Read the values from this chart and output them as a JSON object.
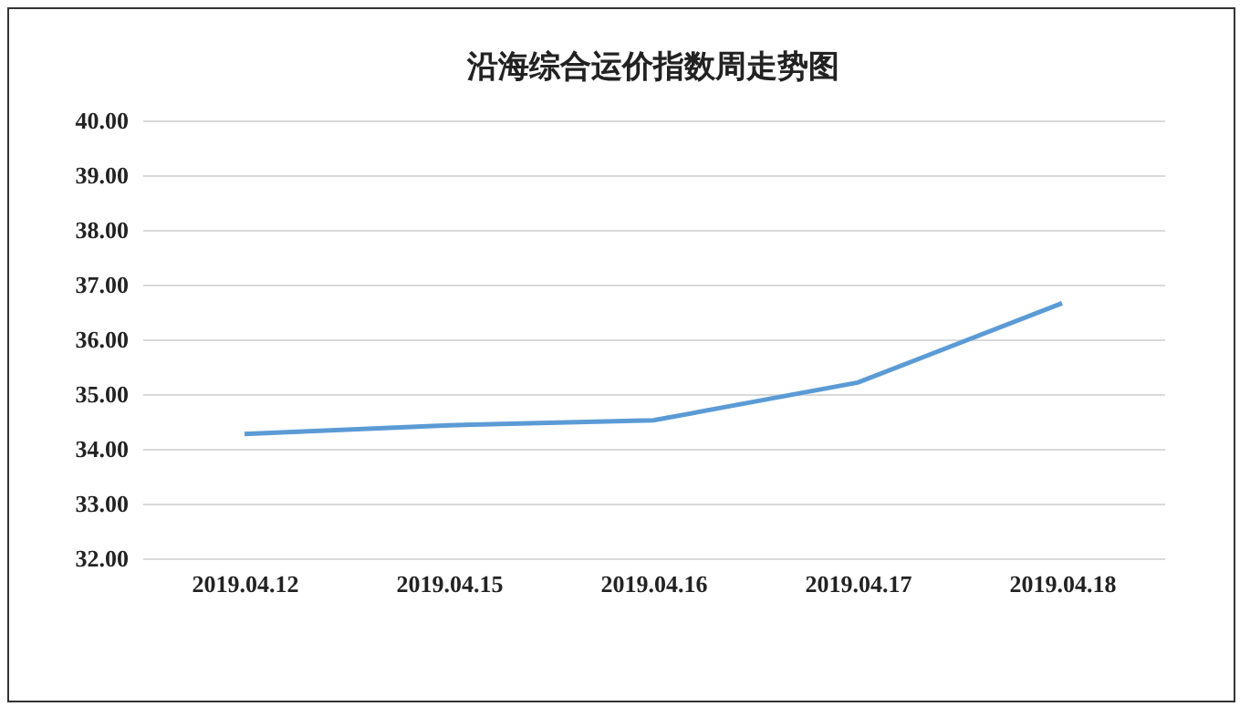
{
  "chart_data": {
    "type": "line",
    "title": "沿海综合运价指数周走势图",
    "categories": [
      "2019.04.12",
      "2019.04.15",
      "2019.04.16",
      "2019.04.17",
      "2019.04.18"
    ],
    "series": [
      {
        "color": "#5b9bd5",
        "values": [
          34.27,
          34.43,
          34.52,
          35.21,
          36.66
        ]
      }
    ],
    "ylim": [
      32,
      40
    ],
    "yticks": [
      {
        "value": 32,
        "label": "32.00"
      },
      {
        "value": 33,
        "label": "33.00"
      },
      {
        "value": 34,
        "label": "34.00"
      },
      {
        "value": 35,
        "label": "35.00"
      },
      {
        "value": 36,
        "label": "36.00"
      },
      {
        "value": 37,
        "label": "37.00"
      },
      {
        "value": 38,
        "label": "38.00"
      },
      {
        "value": 39,
        "label": "39.00"
      },
      {
        "value": 40,
        "label": "40.00"
      }
    ],
    "grid": "y",
    "legend": false,
    "marker": "none",
    "line_style": "solid"
  }
}
